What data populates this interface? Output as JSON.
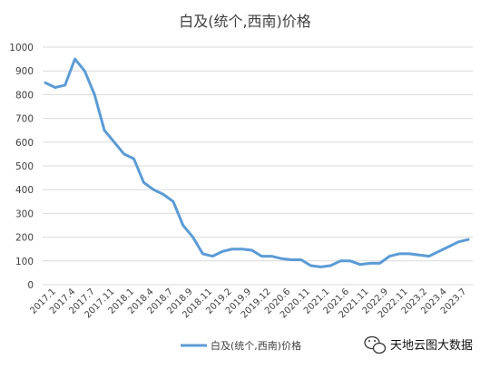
{
  "chart_data": {
    "type": "line",
    "title": "白及(统个,西南)价格",
    "xlabel": "",
    "ylabel": "",
    "ylim": [
      0,
      1000
    ],
    "y_ticks": [
      0,
      100,
      200,
      300,
      400,
      500,
      600,
      700,
      800,
      900,
      1000
    ],
    "grid": true,
    "legend_position": "bottom",
    "x_tick_labels": [
      "2017.1",
      "2017.4",
      "2017.7",
      "2017.11",
      "2018.1",
      "2018.4",
      "2018.7",
      "2018.9",
      "2018.11",
      "2019.2",
      "2019.9",
      "2019.12",
      "2020.6",
      "2020.11",
      "2021.1",
      "2021.6",
      "2021.11",
      "2022.9",
      "2022.11",
      "2023.2",
      "2023.4",
      "2023.7"
    ],
    "series": [
      {
        "name": "白及(统个,西南)价格",
        "color": "#5b9bd5",
        "values": [
          850,
          830,
          840,
          950,
          900,
          800,
          650,
          600,
          550,
          530,
          430,
          400,
          380,
          350,
          250,
          200,
          130,
          120,
          140,
          150,
          150,
          145,
          120,
          120,
          110,
          105,
          105,
          80,
          75,
          80,
          100,
          100,
          85,
          90,
          90,
          120,
          130,
          130,
          125,
          120,
          140,
          160,
          180,
          190
        ]
      }
    ]
  },
  "watermark": {
    "text": "天地云图大数据",
    "icon": "wechat-icon"
  }
}
